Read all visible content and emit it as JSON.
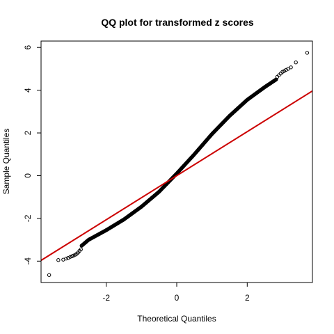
{
  "chart_data": {
    "type": "scatter",
    "title": "QQ plot for transformed z scores",
    "xlabel": "Theoretical Quantiles",
    "ylabel": "Sample Quantiles",
    "xlim": [
      -3.85,
      3.85
    ],
    "ylim": [
      -5.0,
      6.3
    ],
    "x_ticks": [
      -2,
      0,
      2
    ],
    "y_ticks": [
      -4,
      -2,
      0,
      2,
      4,
      6
    ],
    "grid": false,
    "legend": "none",
    "marker": "open-circle",
    "point_color": "#000000",
    "reference_line": {
      "color": "#cc0000",
      "intercept": 0.0,
      "slope": 1.03
    },
    "quantile_curve": [
      [
        -3.6,
        -4.65
      ],
      [
        -3.0,
        -3.7
      ],
      [
        -2.5,
        -3.0
      ],
      [
        -2.0,
        -2.55
      ],
      [
        -1.5,
        -2.05
      ],
      [
        -1.0,
        -1.45
      ],
      [
        -0.5,
        -0.75
      ],
      [
        0.0,
        0.1
      ],
      [
        0.5,
        1.0
      ],
      [
        1.0,
        1.95
      ],
      [
        1.5,
        2.8
      ],
      [
        2.0,
        3.55
      ],
      [
        2.5,
        4.15
      ],
      [
        3.0,
        4.7
      ],
      [
        3.3,
        5.1
      ],
      [
        3.7,
        5.75
      ]
    ],
    "tail_points": [
      [
        -3.62,
        -4.65
      ],
      [
        -3.36,
        -3.95
      ],
      [
        -3.22,
        -3.93
      ],
      [
        -3.14,
        -3.88
      ],
      [
        -3.08,
        -3.85
      ],
      [
        -3.02,
        -3.8
      ],
      [
        -2.97,
        -3.77
      ],
      [
        -2.93,
        -3.74
      ],
      [
        -2.88,
        -3.7
      ],
      [
        -2.84,
        -3.66
      ],
      [
        -2.8,
        -3.6
      ],
      [
        -2.76,
        -3.52
      ],
      [
        -2.72,
        -3.45
      ],
      [
        3.7,
        5.75
      ],
      [
        3.38,
        5.3
      ],
      [
        3.24,
        5.07
      ],
      [
        3.16,
        5.0
      ],
      [
        3.1,
        4.95
      ],
      [
        3.05,
        4.9
      ],
      [
        3.0,
        4.86
      ],
      [
        2.95,
        4.78
      ],
      [
        2.9,
        4.7
      ],
      [
        2.85,
        4.62
      ]
    ],
    "dense_range": [
      -2.7,
      2.82
    ]
  }
}
